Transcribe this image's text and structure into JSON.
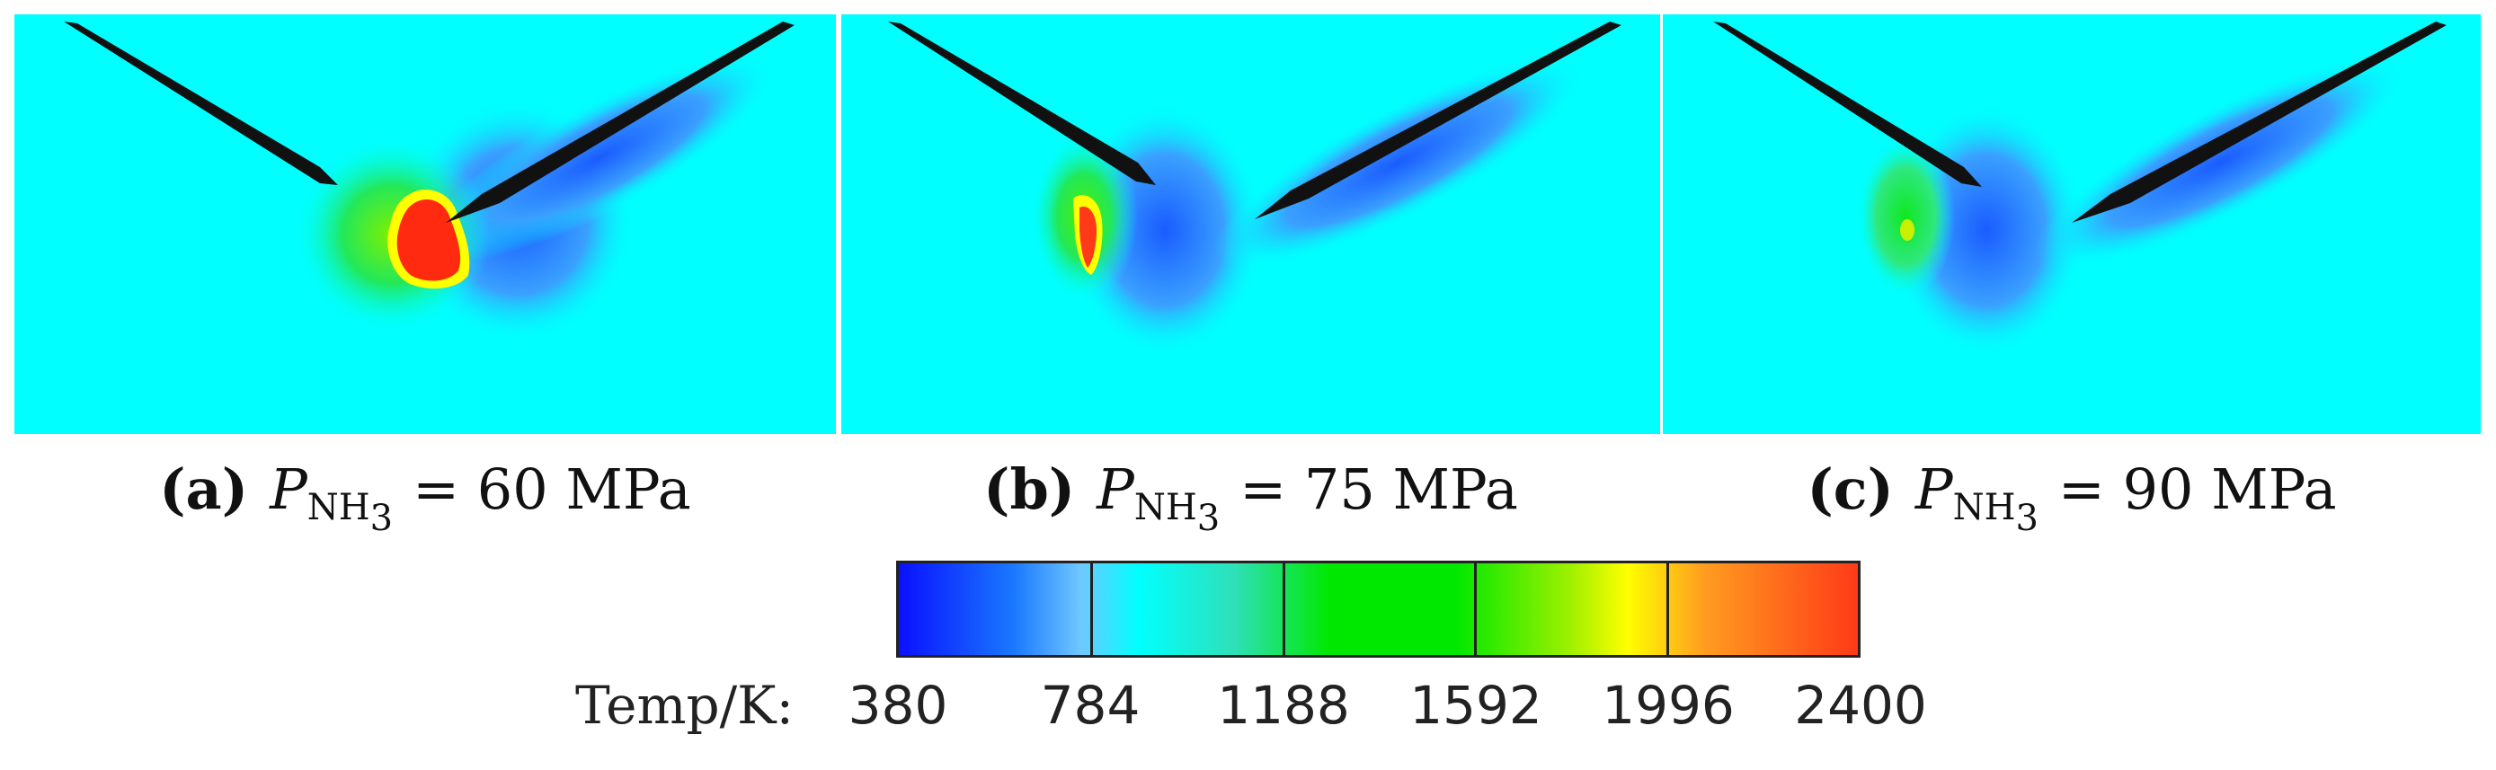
{
  "panels": [
    {
      "id": "a",
      "label": "(a)",
      "symbol": "P",
      "subscript": "NH",
      "subscript2": "3",
      "value_text": "= 60 MPa",
      "pressure_mpa": 60
    },
    {
      "id": "b",
      "label": "(b)",
      "symbol": "P",
      "subscript": "NH",
      "subscript2": "3",
      "value_text": "= 75 MPa",
      "pressure_mpa": 75
    },
    {
      "id": "c",
      "label": "(c)",
      "symbol": "P",
      "subscript": "NH",
      "subscript2": "3",
      "value_text": "= 90 MPa",
      "pressure_mpa": 90
    }
  ],
  "colorbar": {
    "title": "Temp/K:",
    "ticks": [
      "380",
      "784",
      "1188",
      "1592",
      "1996",
      "2400"
    ],
    "min": 380,
    "max": 2400,
    "colors": {
      "low": "#0a10ff",
      "mid": "#00e800",
      "high": "#ff3a18",
      "background": "#00ffff"
    }
  }
}
